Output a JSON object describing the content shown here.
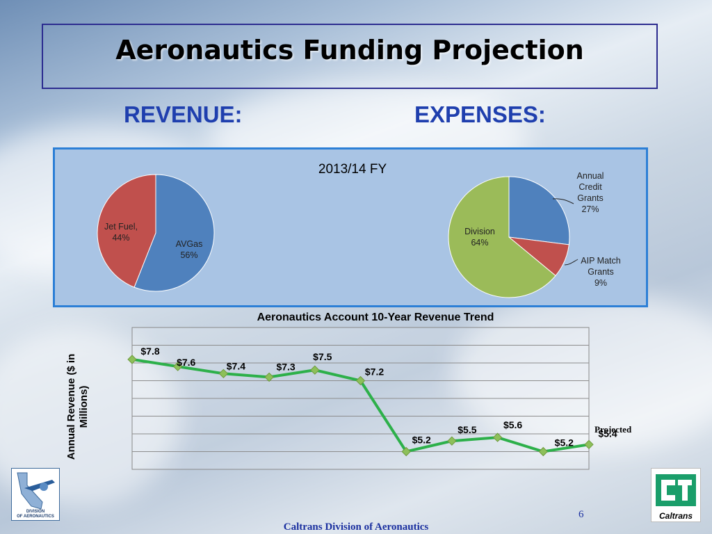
{
  "slide": {
    "title": "Aeronautics Funding Projection",
    "revenue_heading": "REVENUE:",
    "expenses_heading": "EXPENSES:",
    "page_number": "6",
    "footer": "Caltrans Division of Aeronautics",
    "logo_left_text": [
      "DIVISION",
      "OF AERONAUTICS"
    ],
    "logo_right_text": "Caltrans"
  },
  "colors": {
    "heading_blue": "#1f3fae",
    "pie_blue": "#4f81bd",
    "pie_red": "#c0504d",
    "pie_green": "#9bbb59",
    "line_green": "#2db04a",
    "marker_green": "#8dc05a",
    "panel_bg": "#a9c4e4"
  },
  "chart_data": [
    {
      "type": "pie",
      "title": "2013/14 FY",
      "slices": [
        {
          "label": "AVGas",
          "value": 56,
          "display": "AVGas\n56%",
          "color": "#4f81bd"
        },
        {
          "label": "Jet Fuel,",
          "value": 44,
          "display": "Jet Fuel,\n44%",
          "color": "#c0504d"
        }
      ]
    },
    {
      "type": "pie",
      "slices": [
        {
          "label": "Annual Credit Grants",
          "value": 27,
          "display": "Annual\nCredit\nGrants\n27%",
          "color": "#4f81bd"
        },
        {
          "label": "AIP Match Grants",
          "value": 9,
          "display": "AIP Match\nGrants\n9%",
          "color": "#c0504d"
        },
        {
          "label": "Division",
          "value": 64,
          "display": "Division\n64%",
          "color": "#9bbb59"
        }
      ]
    },
    {
      "type": "line",
      "title": "Aeronautics Account 10-Year Revenue Trend",
      "ylabel": "Annual Revenue ($ in Millions)",
      "x": [
        1,
        2,
        3,
        4,
        5,
        6,
        7,
        8,
        9,
        10,
        11
      ],
      "values": [
        7.8,
        7.6,
        7.4,
        7.3,
        7.5,
        7.2,
        5.2,
        5.5,
        5.6,
        5.2,
        5.4
      ],
      "data_labels": [
        "$7.8",
        "$7.6",
        "$7.4",
        "$7.3",
        "$7.5",
        "$7.2",
        "$5.2",
        "$5.5",
        "$5.6",
        "$5.2",
        "$5.4"
      ],
      "annotation": "Projected",
      "ylim": [
        4.7,
        8.7
      ],
      "gridlines": true
    }
  ]
}
